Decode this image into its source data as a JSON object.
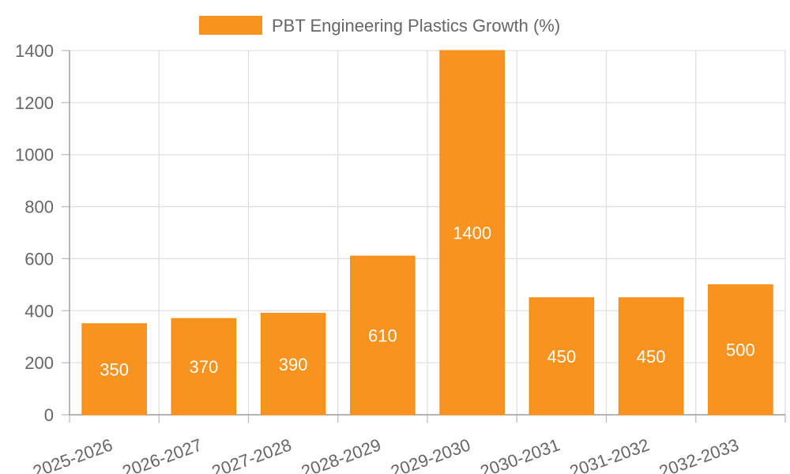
{
  "chart_data": {
    "type": "bar",
    "title": "",
    "xlabel": "",
    "ylabel": "",
    "ylim": [
      0,
      1400
    ],
    "yticks": [
      0,
      200,
      400,
      600,
      800,
      1000,
      1200,
      1400
    ],
    "grid": true,
    "legend_position": "top-center",
    "categories": [
      "2025-2026",
      "2026-2027",
      "2027-2028",
      "2028-2029",
      "2029-2030",
      "2030-2031",
      "2031-2032",
      "2032-2033"
    ],
    "series": [
      {
        "name": "PBT Engineering Plastics Growth (%)",
        "color": "#f7931e",
        "values": [
          350,
          370,
          390,
          610,
          1400,
          450,
          450,
          500
        ],
        "labels": [
          "350",
          "370",
          "390",
          "610",
          "1400",
          "450",
          "450",
          "500"
        ]
      }
    ]
  }
}
